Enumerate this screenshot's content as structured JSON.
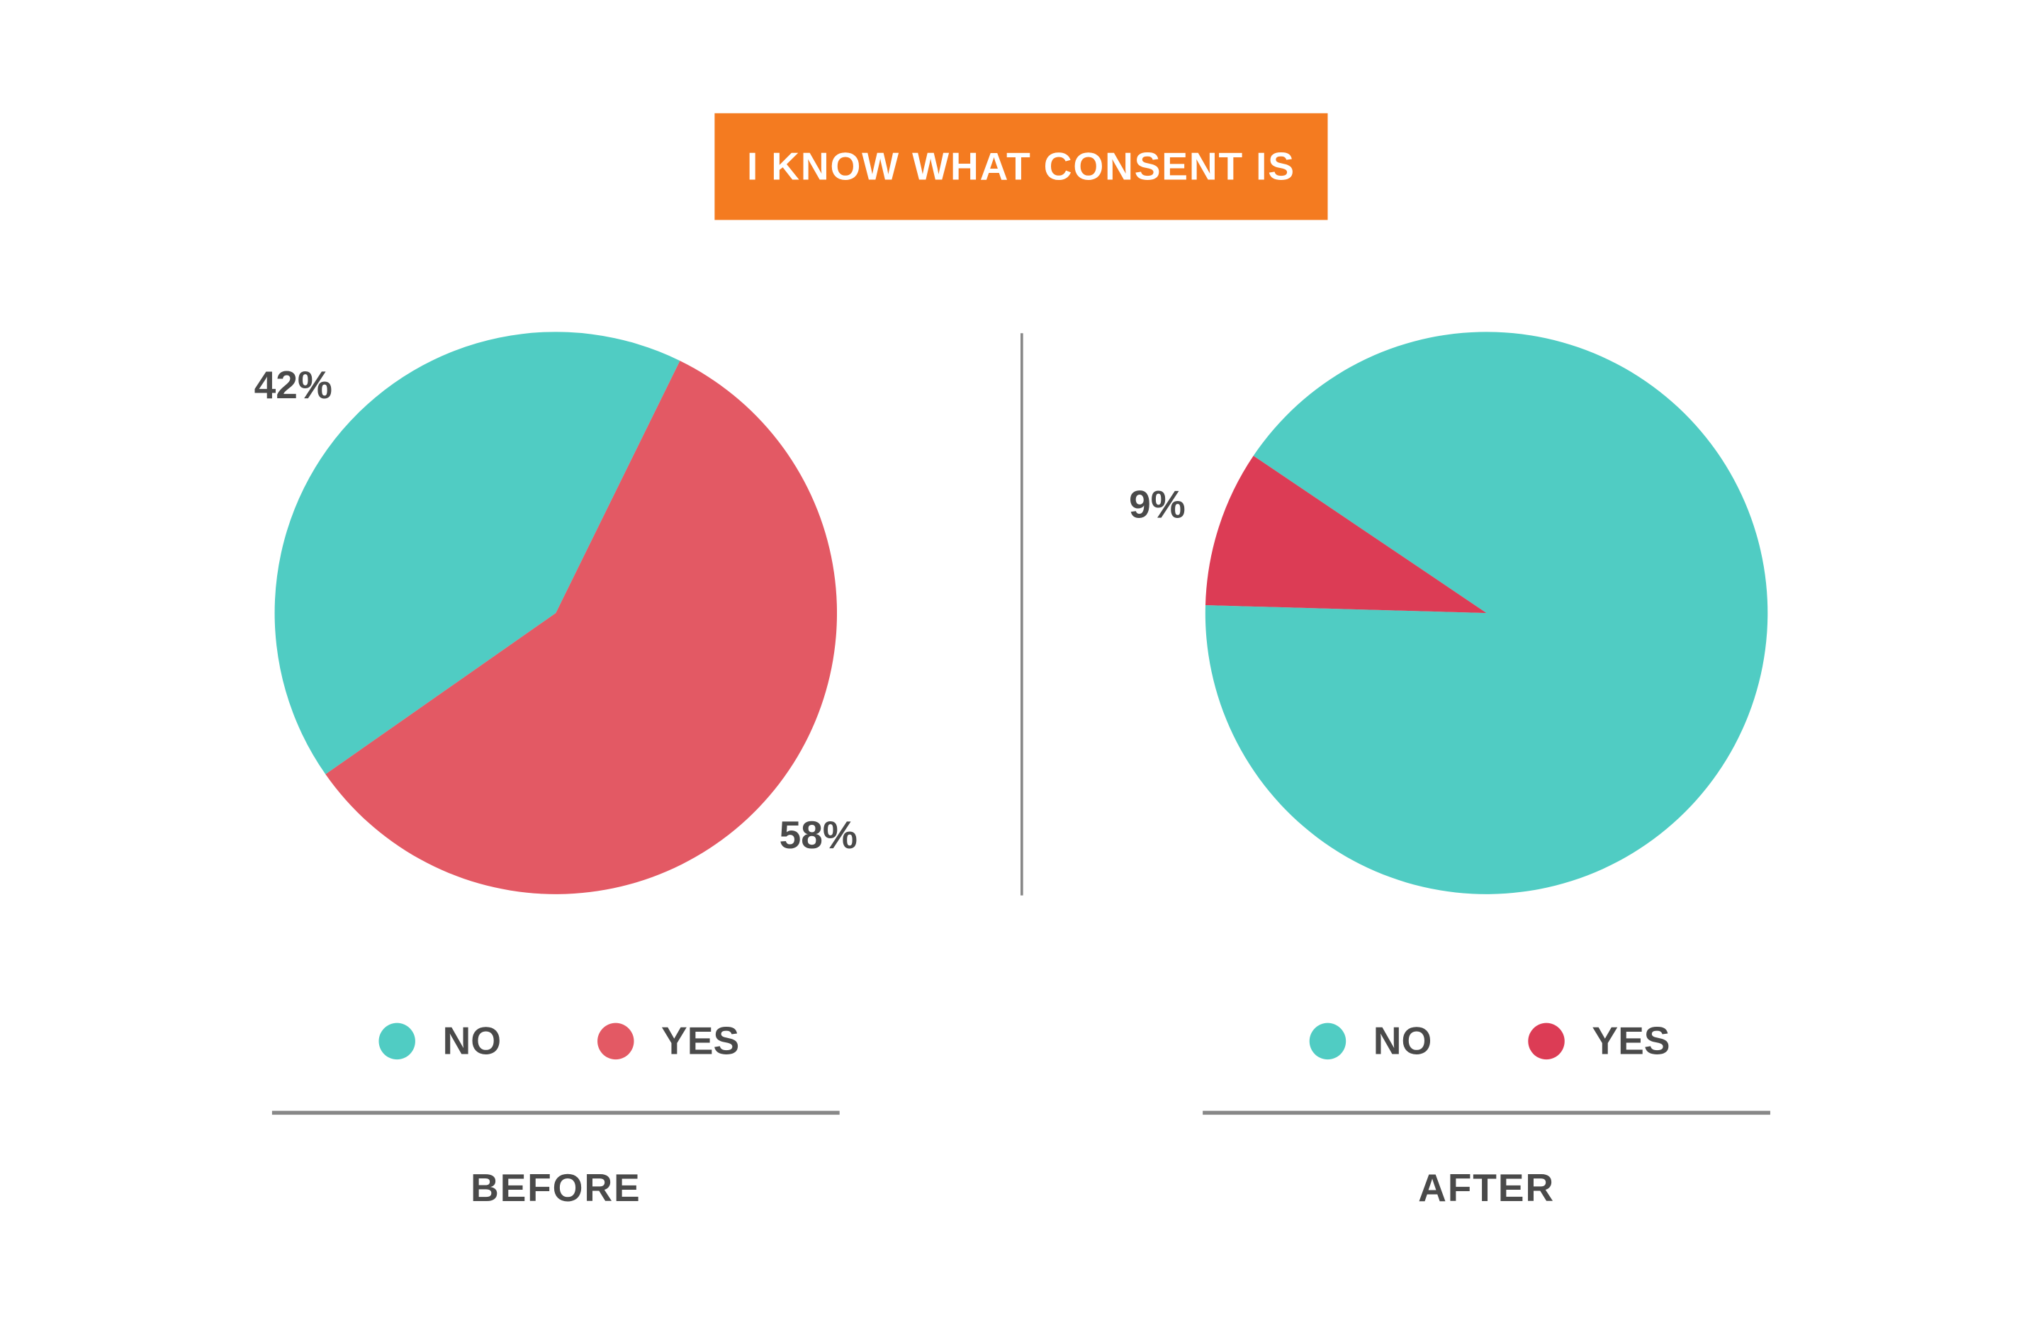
{
  "header": {
    "title": "I KNOW WHAT CONSENT IS"
  },
  "chart_data": [
    {
      "type": "pie",
      "title": "BEFORE",
      "categories": [
        "NO",
        "YES"
      ],
      "values": [
        42,
        58
      ],
      "value_labels": [
        "42%",
        "58%"
      ],
      "colors": [
        "#50ccc3",
        "#e35964"
      ]
    },
    {
      "type": "pie",
      "title": "AFTER",
      "categories": [
        "NO",
        "YES"
      ],
      "values": [
        91,
        9
      ],
      "value_labels": [
        null,
        "9%"
      ],
      "colors": [
        "#50ccc3",
        "#dc3c55"
      ]
    }
  ]
}
